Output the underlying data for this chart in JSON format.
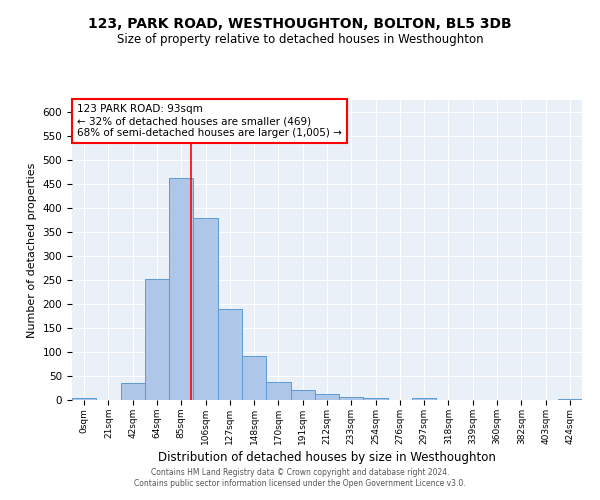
{
  "title1": "123, PARK ROAD, WESTHOUGHTON, BOLTON, BL5 3DB",
  "title2": "Size of property relative to detached houses in Westhoughton",
  "xlabel": "Distribution of detached houses by size in Westhoughton",
  "ylabel": "Number of detached properties",
  "footer1": "Contains HM Land Registry data © Crown copyright and database right 2024.",
  "footer2": "Contains public sector information licensed under the Open Government Licence v3.0.",
  "bin_labels": [
    "0sqm",
    "21sqm",
    "42sqm",
    "64sqm",
    "85sqm",
    "106sqm",
    "127sqm",
    "148sqm",
    "170sqm",
    "191sqm",
    "212sqm",
    "233sqm",
    "254sqm",
    "276sqm",
    "297sqm",
    "318sqm",
    "339sqm",
    "360sqm",
    "382sqm",
    "403sqm",
    "424sqm"
  ],
  "bar_values": [
    5,
    0,
    35,
    252,
    462,
    380,
    190,
    91,
    37,
    21,
    13,
    6,
    5,
    0,
    5,
    0,
    0,
    0,
    0,
    0,
    3
  ],
  "bar_color": "#aec6e8",
  "bar_edge_color": "#5b9bd5",
  "property_bin_index": 4,
  "annotation_text": "123 PARK ROAD: 93sqm\n← 32% of detached houses are smaller (469)\n68% of semi-detached houses are larger (1,005) →",
  "annotation_box_color": "white",
  "annotation_box_edge_color": "red",
  "vline_color": "red",
  "ylim": [
    0,
    625
  ],
  "yticks": [
    0,
    50,
    100,
    150,
    200,
    250,
    300,
    350,
    400,
    450,
    500,
    550,
    600
  ],
  "bg_color": "#eaf0f8",
  "grid_color": "white"
}
